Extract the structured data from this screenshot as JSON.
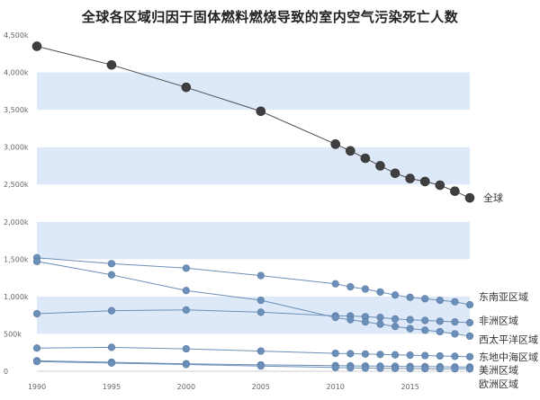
{
  "chart_data": {
    "type": "line",
    "title": "全球各区域归因于固体燃料燃烧导致的室内空气污染死亡人数",
    "xlabel": "",
    "ylabel": "",
    "xlim": [
      1990,
      2019
    ],
    "ylim": [
      0,
      4500000
    ],
    "y_tick_values": [
      0,
      500000,
      1000000,
      1500000,
      2000000,
      2500000,
      3000000,
      3500000,
      4000000,
      4500000
    ],
    "y_tick_labels": [
      "0",
      "500k",
      "1,000k",
      "1,500k",
      "2,000k",
      "2,500k",
      "3,000k",
      "3,500k",
      "4,000k",
      "4,500k"
    ],
    "x_tick_values": [
      1990,
      1995,
      2000,
      2005,
      2010,
      2015
    ],
    "x_tick_labels": [
      "1990",
      "1995",
      "2000",
      "2005",
      "2010",
      "2015"
    ],
    "grid": "alternating horizontal bands",
    "legend": "direct labels at right end of each line",
    "x": [
      1990,
      1995,
      2000,
      2005,
      2010,
      2011,
      2012,
      2013,
      2014,
      2015,
      2016,
      2017,
      2018,
      2019
    ],
    "series": [
      {
        "name": "全球",
        "color": "#3f3f42",
        "values": [
          4350000,
          4100000,
          3800000,
          3480000,
          3040000,
          2950000,
          2850000,
          2750000,
          2650000,
          2580000,
          2540000,
          2490000,
          2410000,
          2320000
        ]
      },
      {
        "name": "东南亚区域",
        "color": "#6b8fb8",
        "values": [
          1520000,
          1440000,
          1380000,
          1280000,
          1170000,
          1130000,
          1100000,
          1060000,
          1020000,
          990000,
          970000,
          950000,
          930000,
          890000
        ]
      },
      {
        "name": "非洲区域",
        "color": "#6b8fb8",
        "values": [
          770000,
          810000,
          820000,
          790000,
          740000,
          740000,
          730000,
          720000,
          700000,
          690000,
          680000,
          670000,
          660000,
          650000
        ]
      },
      {
        "name": "西太平洋区域",
        "color": "#6b8fb8",
        "values": [
          1470000,
          1290000,
          1080000,
          950000,
          720000,
          690000,
          660000,
          630000,
          600000,
          570000,
          550000,
          530000,
          500000,
          470000
        ]
      },
      {
        "name": "东地中海区域",
        "color": "#6b8fb8",
        "values": [
          310000,
          320000,
          300000,
          270000,
          240000,
          235000,
          230000,
          225000,
          220000,
          215000,
          210000,
          205000,
          200000,
          195000
        ]
      },
      {
        "name": "美洲区域",
        "color": "#6b8fb8",
        "values": [
          140000,
          120000,
          100000,
          85000,
          75000,
          72000,
          70000,
          68000,
          66000,
          64000,
          62000,
          60000,
          58000,
          57000
        ]
      },
      {
        "name": "欧洲区域",
        "color": "#6b8fb8",
        "values": [
          130000,
          110000,
          90000,
          70000,
          50000,
          45000,
          42000,
          40000,
          38000,
          36000,
          35000,
          34000,
          33000,
          32000
        ]
      }
    ],
    "label_positions": [
      2320000,
      1000000,
      680000,
      430000,
      190000,
      20000,
      -170000
    ]
  }
}
